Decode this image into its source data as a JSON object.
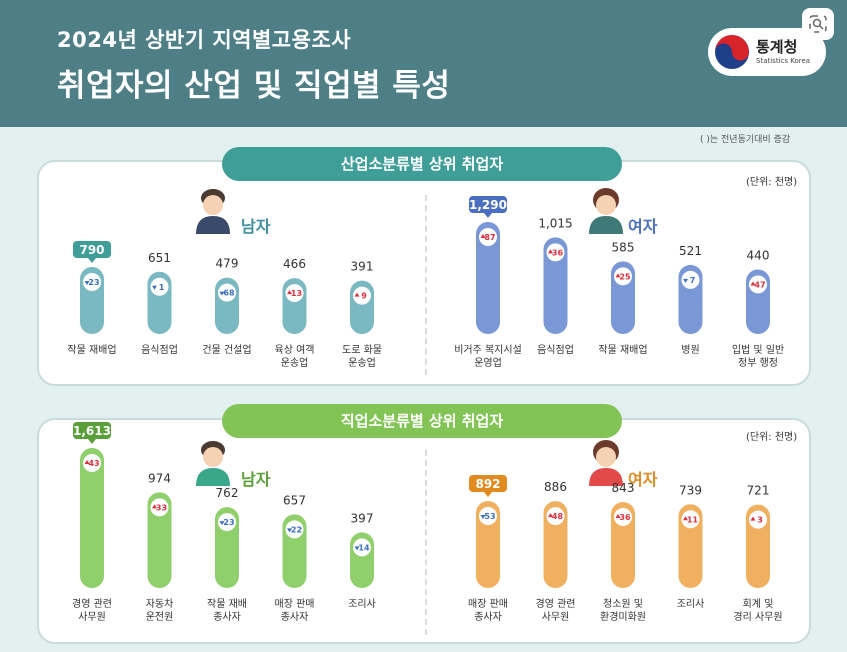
{
  "header": {
    "subtitle": "2024년 상반기 지역별고용조사",
    "title": "취업자의 산업 및 직업별 특성"
  },
  "logo": {
    "text": "통계청",
    "sub": "Statistics Korea"
  },
  "note": "( )는 전년동기대비 증감",
  "colors": {
    "header": "#4e7f86",
    "industry_tab": "#3f9e98",
    "occupation_tab": "#83c456",
    "male_ind": "#7ab8c2",
    "female_ind": "#7a98d6",
    "male_occ": "#8fcf6c",
    "female_occ": "#f0b060",
    "up": "#e0303c",
    "down": "#3a6fc0"
  },
  "sections": [
    {
      "title": "산업소분류별 상위 취업자",
      "unit": "(단위: 천명)",
      "male_label": "남자",
      "female_label": "여자",
      "chart_data": [
        {
          "type": "bar",
          "series": [
            {
              "name": "남자",
              "values": [
                790,
                651,
                479,
                466,
                391
              ]
            }
          ],
          "categories": [
            "작물 재배업",
            "음식점업",
            "건물 건설업",
            "육상 여객 운송업",
            "도로 화물 운송업"
          ],
          "change": [
            {
              "value": 23,
              "dir": "down"
            },
            {
              "value": 1,
              "dir": "down"
            },
            {
              "value": 68,
              "dir": "down"
            },
            {
              "value": 13,
              "dir": "up"
            },
            {
              "value": 9,
              "dir": "up"
            }
          ]
        },
        {
          "type": "bar",
          "series": [
            {
              "name": "여자",
              "values": [
                1290,
                1015,
                585,
                521,
                440
              ]
            }
          ],
          "categories": [
            "비거주 복지시설 운영업",
            "음식점업",
            "작물 재배업",
            "병원",
            "입법 및 일반 정부 행정"
          ],
          "change": [
            {
              "value": 87,
              "dir": "up"
            },
            {
              "value": 36,
              "dir": "up"
            },
            {
              "value": 25,
              "dir": "up"
            },
            {
              "value": 7,
              "dir": "down"
            },
            {
              "value": 47,
              "dir": "up"
            }
          ]
        }
      ]
    },
    {
      "title": "직업소분류별 상위 취업자",
      "unit": "(단위: 천명)",
      "male_label": "남자",
      "female_label": "여자",
      "chart_data": [
        {
          "type": "bar",
          "series": [
            {
              "name": "남자",
              "values": [
                1613,
                974,
                762,
                657,
                397
              ]
            }
          ],
          "categories": [
            "경영 관련 사무원",
            "자동차 운전원",
            "작물 재배 종사자",
            "매장 판매 종사자",
            "조리사"
          ],
          "change": [
            {
              "value": 43,
              "dir": "up"
            },
            {
              "value": 33,
              "dir": "up"
            },
            {
              "value": 23,
              "dir": "down"
            },
            {
              "value": 22,
              "dir": "down"
            },
            {
              "value": 14,
              "dir": "down"
            }
          ]
        },
        {
          "type": "bar",
          "series": [
            {
              "name": "여자",
              "values": [
                892,
                886,
                843,
                739,
                721
              ]
            }
          ],
          "categories": [
            "매장 판매 종사자",
            "경영 관련 사무원",
            "청소원 및 환경미화원",
            "조리사",
            "회계 및 경리 사무원"
          ],
          "change": [
            {
              "value": 53,
              "dir": "down"
            },
            {
              "value": 48,
              "dir": "up"
            },
            {
              "value": 36,
              "dir": "up"
            },
            {
              "value": 11,
              "dir": "up"
            },
            {
              "value": 3,
              "dir": "up"
            }
          ]
        }
      ]
    }
  ]
}
